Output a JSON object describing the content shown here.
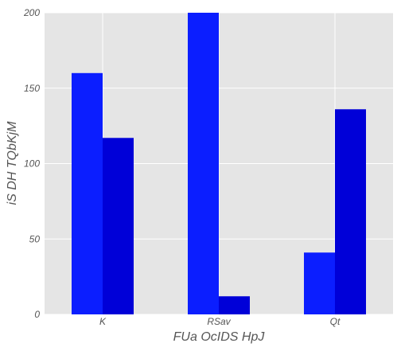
{
  "chart_data": {
    "type": "bar",
    "categories": [
      "K",
      "RSav",
      "Qt"
    ],
    "series": [
      {
        "values": [
          160,
          200,
          41
        ],
        "color": "#0b1eff"
      },
      {
        "values": [
          117,
          12,
          136
        ],
        "color": "#0000d8"
      }
    ],
    "xlabel": "FUa OcIDS  HpJ",
    "ylabel": "iS DH TQbKjM",
    "ylim": [
      0,
      200
    ],
    "yticks": [
      0,
      50,
      100,
      150,
      200
    ],
    "grid": true,
    "background": "#e5e5e5"
  }
}
